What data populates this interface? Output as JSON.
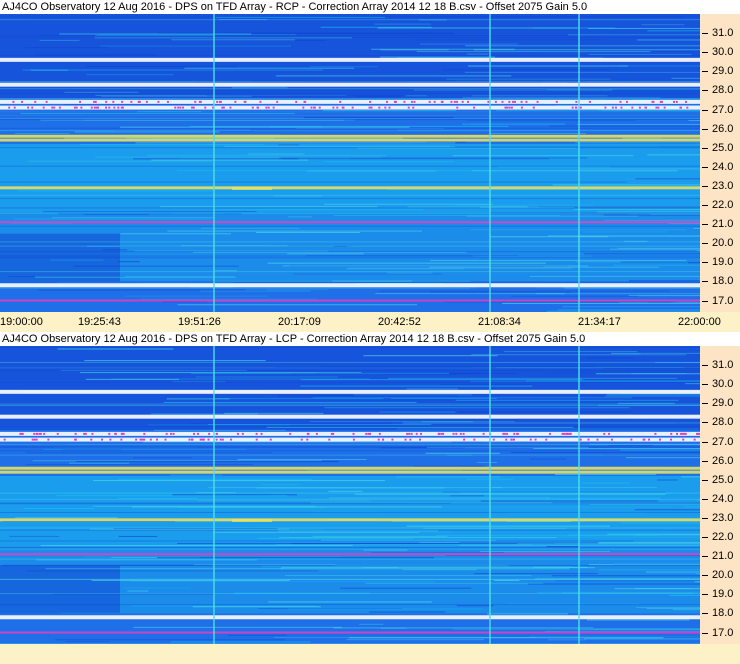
{
  "colors": {
    "background_blue": "#1e6fe8",
    "cyan": "#19c3f0",
    "light_cyan": "#4fe0e8",
    "dark_blue": "#1040d0",
    "white_band": "#ffffff",
    "magenta_speckle": "#e040c0",
    "yellow_band": "#e8e060",
    "axis_bg_y": "#fde4c4",
    "axis_bg_x": "#fdf1c8"
  },
  "chart_data": [
    {
      "type": "heatmap",
      "title": "AJ4CO Observatory 12 Aug 2016   -  DPS on TFD Array  -  RCP  -  Correction Array 2014 12 18 B.csv  -  Offset 2075  Gain 5.0",
      "xlabel": "",
      "ylabel": "",
      "xticks": [
        "19:00:00",
        "19:25:43",
        "19:51:26",
        "20:17:09",
        "20:42:52",
        "21:08:34",
        "21:34:17",
        "22:00:00"
      ],
      "yticks": [
        "31.0",
        "30.0",
        "29.0",
        "28.0",
        "27.0",
        "26.0",
        "25.0",
        "24.0",
        "23.0",
        "22.0",
        "21.0",
        "20.0",
        "19.0",
        "18.0",
        "17.0"
      ],
      "ylim": [
        16.4,
        32.0
      ],
      "notable_bands_mhz": [
        {
          "freq": 27.1,
          "kind": "white"
        },
        {
          "freq": 27.4,
          "kind": "white"
        },
        {
          "freq": 25.6,
          "kind": "yellow"
        },
        {
          "freq": 25.4,
          "kind": "yellow"
        },
        {
          "freq": 28.3,
          "kind": "white"
        },
        {
          "freq": 29.6,
          "kind": "white"
        },
        {
          "freq": 17.8,
          "kind": "white"
        },
        {
          "freq": 17.0,
          "kind": "magenta"
        },
        {
          "freq": 21.1,
          "kind": "magenta"
        },
        {
          "freq": 22.9,
          "kind": "yellow"
        }
      ]
    },
    {
      "type": "heatmap",
      "title": "AJ4CO Observatory 12 Aug 2016   -  DPS on TFD Array  -  LCP  -  Correction Array 2014 12 18 B.csv  -  Offset 2075  Gain 5.0",
      "xlabel": "",
      "ylabel": "",
      "xticks": [],
      "yticks": [
        "31.0",
        "30.0",
        "29.0",
        "28.0",
        "27.0",
        "26.0",
        "25.0",
        "24.0",
        "23.0",
        "22.0",
        "21.0",
        "20.0",
        "19.0",
        "18.0",
        "17.0"
      ],
      "ylim": [
        16.4,
        32.0
      ],
      "notable_bands_mhz": [
        {
          "freq": 27.1,
          "kind": "white"
        },
        {
          "freq": 27.4,
          "kind": "white"
        },
        {
          "freq": 25.6,
          "kind": "yellow"
        },
        {
          "freq": 25.4,
          "kind": "yellow"
        },
        {
          "freq": 28.3,
          "kind": "white"
        },
        {
          "freq": 29.6,
          "kind": "white"
        },
        {
          "freq": 17.8,
          "kind": "white"
        },
        {
          "freq": 17.0,
          "kind": "magenta"
        },
        {
          "freq": 21.1,
          "kind": "magenta"
        },
        {
          "freq": 22.9,
          "kind": "yellow"
        }
      ]
    }
  ]
}
